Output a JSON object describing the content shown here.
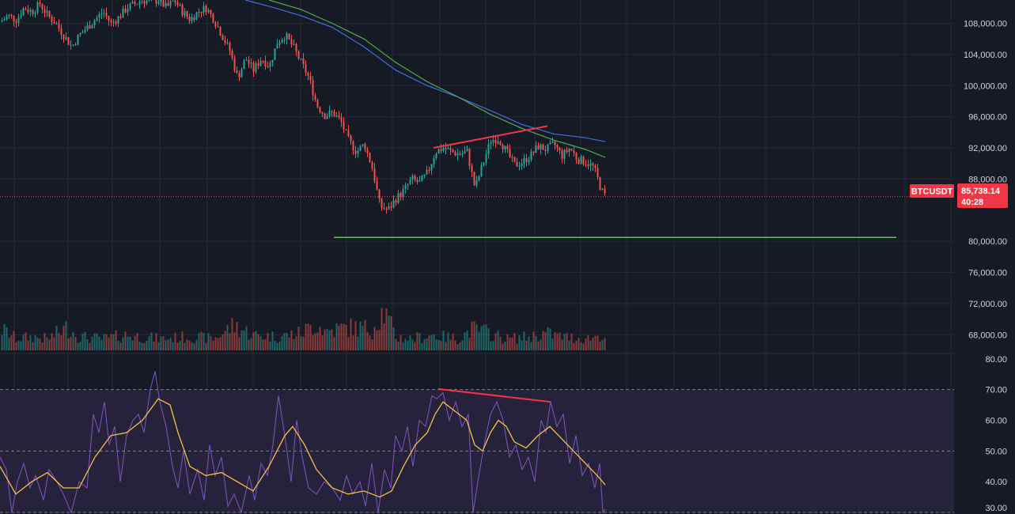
{
  "symbol_badge": "BTCUSDT",
  "last_price_label": "85,738.14",
  "countdown_label": "40:28",
  "colors": {
    "background": "#161a25",
    "grid": "#262a36",
    "up": "#26a69a",
    "down": "#ef5350",
    "ma_fast": "#3d6fe0",
    "ma_slow": "#4caf50",
    "rsi": "#7e57c2",
    "rsi_ma": "#f5c044",
    "rsi_band": "#2a2540",
    "trendline": "#f23645",
    "support": "#66bb6a",
    "price_badge": "#f23645"
  },
  "chart_data": [
    {
      "type": "candlestick",
      "price_axis_ticks": [
        "108,000.00",
        "104,000.00",
        "100,000.00",
        "96,000.00",
        "92,000.00",
        "88,000.00",
        "80,000.00",
        "76,000.00",
        "72,000.00",
        "68,000.00"
      ],
      "price_axis_values": [
        108000,
        104000,
        100000,
        96000,
        92000,
        88000,
        80000,
        76000,
        72000,
        68000
      ],
      "ylim": [
        66000,
        111000
      ],
      "last_price": 85738.14,
      "close_path": [
        [
          0,
          108200
        ],
        [
          10,
          109000
        ],
        [
          20,
          108500
        ],
        [
          30,
          110000
        ],
        [
          40,
          109500
        ],
        [
          50,
          110500
        ],
        [
          60,
          109000
        ],
        [
          70,
          108000
        ],
        [
          80,
          106500
        ],
        [
          90,
          105000
        ],
        [
          100,
          106500
        ],
        [
          110,
          107500
        ],
        [
          120,
          108500
        ],
        [
          130,
          109500
        ],
        [
          140,
          108000
        ],
        [
          150,
          108800
        ],
        [
          160,
          110000
        ],
        [
          170,
          110500
        ],
        [
          180,
          111000
        ],
        [
          190,
          110800
        ],
        [
          200,
          111000
        ],
        [
          210,
          110000
        ],
        [
          220,
          111000
        ],
        [
          230,
          109500
        ],
        [
          240,
          108500
        ],
        [
          250,
          109500
        ],
        [
          260,
          110000
        ],
        [
          270,
          108500
        ],
        [
          280,
          106500
        ],
        [
          290,
          104500
        ],
        [
          300,
          101000
        ],
        [
          310,
          103500
        ],
        [
          320,
          102000
        ],
        [
          330,
          103500
        ],
        [
          340,
          102500
        ],
        [
          350,
          105500
        ],
        [
          360,
          106500
        ],
        [
          370,
          105000
        ],
        [
          380,
          103000
        ],
        [
          390,
          101000
        ],
        [
          400,
          97500
        ],
        [
          410,
          96200
        ],
        [
          420,
          96500
        ],
        [
          430,
          95500
        ],
        [
          440,
          93000
        ],
        [
          450,
          91500
        ],
        [
          460,
          92500
        ],
        [
          470,
          89500
        ],
        [
          480,
          84500
        ],
        [
          490,
          84000
        ],
        [
          500,
          85500
        ],
        [
          510,
          86500
        ],
        [
          520,
          88000
        ],
        [
          530,
          87500
        ],
        [
          540,
          88800
        ],
        [
          550,
          91500
        ],
        [
          560,
          92000
        ],
        [
          570,
          91500
        ],
        [
          580,
          91200
        ],
        [
          590,
          91500
        ],
        [
          600,
          86800
        ],
        [
          610,
          90000
        ],
        [
          620,
          93000
        ],
        [
          630,
          93200
        ],
        [
          640,
          91500
        ],
        [
          650,
          89800
        ],
        [
          660,
          90200
        ],
        [
          670,
          91000
        ],
        [
          680,
          92200
        ],
        [
          690,
          91800
        ],
        [
          700,
          92500
        ],
        [
          710,
          91000
        ],
        [
          720,
          92000
        ],
        [
          730,
          90500
        ],
        [
          740,
          90200
        ],
        [
          750,
          89500
        ],
        [
          760,
          86500
        ],
        [
          765,
          85738
        ]
      ],
      "volume_path": [
        [
          0,
          0.55
        ],
        [
          10,
          0.45
        ],
        [
          20,
          0.3
        ],
        [
          40,
          0.35
        ],
        [
          60,
          0.3
        ],
        [
          85,
          0.6
        ],
        [
          100,
          0.35
        ],
        [
          130,
          0.3
        ],
        [
          160,
          0.4
        ],
        [
          200,
          0.3
        ],
        [
          240,
          0.35
        ],
        [
          270,
          0.3
        ],
        [
          295,
          0.65
        ],
        [
          320,
          0.4
        ],
        [
          350,
          0.35
        ],
        [
          380,
          0.45
        ],
        [
          400,
          0.7
        ],
        [
          410,
          0.5
        ],
        [
          440,
          0.6
        ],
        [
          470,
          0.55
        ],
        [
          480,
          0.95
        ],
        [
          485,
          1.0
        ],
        [
          500,
          0.35
        ],
        [
          520,
          0.3
        ],
        [
          545,
          0.4
        ],
        [
          560,
          0.35
        ],
        [
          580,
          0.3
        ],
        [
          595,
          0.55
        ],
        [
          610,
          0.5
        ],
        [
          640,
          0.3
        ],
        [
          670,
          0.35
        ],
        [
          690,
          0.45
        ],
        [
          710,
          0.35
        ],
        [
          740,
          0.3
        ],
        [
          760,
          0.4
        ],
        [
          765,
          0.3
        ]
      ],
      "ma_fast_path": [
        [
          310,
          111000
        ],
        [
          340,
          110200
        ],
        [
          380,
          109000
        ],
        [
          420,
          107500
        ],
        [
          460,
          105000
        ],
        [
          500,
          102000
        ],
        [
          540,
          100000
        ],
        [
          580,
          98500
        ],
        [
          620,
          96800
        ],
        [
          660,
          95000
        ],
        [
          700,
          93800
        ],
        [
          740,
          93300
        ],
        [
          765,
          92800
        ]
      ],
      "ma_slow_path": [
        [
          340,
          111000
        ],
        [
          380,
          109800
        ],
        [
          420,
          108000
        ],
        [
          460,
          106000
        ],
        [
          500,
          103000
        ],
        [
          540,
          100500
        ],
        [
          580,
          98500
        ],
        [
          620,
          96300
        ],
        [
          660,
          94500
        ],
        [
          700,
          93000
        ],
        [
          740,
          91800
        ],
        [
          765,
          90800
        ]
      ],
      "resistance_line": [
        [
          548,
          92000
        ],
        [
          692,
          94800
        ]
      ],
      "support_line": [
        [
          422,
          80500
        ],
        [
          1133,
          80500
        ]
      ]
    },
    {
      "type": "line",
      "rsi_axis_ticks": [
        "80.00",
        "70.00",
        "60.00",
        "50.00",
        "40.00",
        "30.00"
      ],
      "rsi_axis_values": [
        80,
        70,
        60,
        50,
        40,
        30
      ],
      "ylim": [
        29.5,
        81.5
      ],
      "overbought": 70,
      "midline": 50,
      "oversold": 30,
      "rsi_path": [
        [
          0,
          48
        ],
        [
          8,
          44
        ],
        [
          15,
          30
        ],
        [
          22,
          40
        ],
        [
          30,
          46
        ],
        [
          38,
          38
        ],
        [
          45,
          42
        ],
        [
          55,
          34
        ],
        [
          62,
          44
        ],
        [
          72,
          40
        ],
        [
          80,
          36
        ],
        [
          90,
          30
        ],
        [
          100,
          40
        ],
        [
          110,
          38
        ],
        [
          118,
          62
        ],
        [
          125,
          56
        ],
        [
          132,
          66
        ],
        [
          138,
          52
        ],
        [
          145,
          58
        ],
        [
          152,
          40
        ],
        [
          160,
          55
        ],
        [
          168,
          60
        ],
        [
          175,
          62
        ],
        [
          182,
          56
        ],
        [
          190,
          70
        ],
        [
          196,
          76
        ],
        [
          202,
          66
        ],
        [
          210,
          58
        ],
        [
          218,
          45
        ],
        [
          225,
          38
        ],
        [
          232,
          50
        ],
        [
          240,
          36
        ],
        [
          250,
          44
        ],
        [
          258,
          34
        ],
        [
          265,
          52
        ],
        [
          272,
          42
        ],
        [
          280,
          48
        ],
        [
          288,
          32
        ],
        [
          296,
          36
        ],
        [
          305,
          30
        ],
        [
          315,
          42
        ],
        [
          322,
          34
        ],
        [
          330,
          46
        ],
        [
          338,
          42
        ],
        [
          345,
          52
        ],
        [
          352,
          68
        ],
        [
          360,
          55
        ],
        [
          368,
          40
        ],
        [
          375,
          60
        ],
        [
          382,
          48
        ],
        [
          390,
          38
        ],
        [
          400,
          36
        ],
        [
          410,
          40
        ],
        [
          420,
          38
        ],
        [
          430,
          34
        ],
        [
          438,
          42
        ],
        [
          446,
          36
        ],
        [
          455,
          40
        ],
        [
          462,
          32
        ],
        [
          470,
          46
        ],
        [
          478,
          30
        ],
        [
          486,
          44
        ],
        [
          494,
          38
        ],
        [
          500,
          55
        ],
        [
          508,
          50
        ],
        [
          515,
          58
        ],
        [
          522,
          45
        ],
        [
          530,
          60
        ],
        [
          538,
          58
        ],
        [
          546,
          68
        ],
        [
          552,
          67
        ],
        [
          560,
          69
        ],
        [
          568,
          60
        ],
        [
          576,
          66
        ],
        [
          584,
          58
        ],
        [
          592,
          62
        ],
        [
          598,
          30
        ],
        [
          604,
          40
        ],
        [
          612,
          52
        ],
        [
          620,
          62
        ],
        [
          628,
          66
        ],
        [
          636,
          60
        ],
        [
          644,
          48
        ],
        [
          652,
          52
        ],
        [
          660,
          44
        ],
        [
          668,
          48
        ],
        [
          676,
          40
        ],
        [
          684,
          60
        ],
        [
          690,
          56
        ],
        [
          696,
          66
        ],
        [
          704,
          58
        ],
        [
          712,
          62
        ],
        [
          720,
          46
        ],
        [
          728,
          55
        ],
        [
          736,
          42
        ],
        [
          744,
          46
        ],
        [
          752,
          38
        ],
        [
          758,
          46
        ],
        [
          762,
          30
        ],
        [
          765,
          31
        ]
      ],
      "rsi_ma_path": [
        [
          0,
          45
        ],
        [
          20,
          36
        ],
        [
          40,
          40
        ],
        [
          60,
          43
        ],
        [
          80,
          38
        ],
        [
          100,
          38
        ],
        [
          120,
          48
        ],
        [
          140,
          55
        ],
        [
          160,
          56
        ],
        [
          180,
          60
        ],
        [
          200,
          67
        ],
        [
          215,
          65
        ],
        [
          225,
          56
        ],
        [
          240,
          45
        ],
        [
          260,
          42
        ],
        [
          280,
          43
        ],
        [
          300,
          40
        ],
        [
          320,
          37
        ],
        [
          340,
          45
        ],
        [
          360,
          55
        ],
        [
          370,
          58
        ],
        [
          385,
          52
        ],
        [
          400,
          44
        ],
        [
          420,
          38
        ],
        [
          440,
          36
        ],
        [
          460,
          37
        ],
        [
          480,
          35
        ],
        [
          495,
          37
        ],
        [
          510,
          45
        ],
        [
          525,
          52
        ],
        [
          540,
          56
        ],
        [
          550,
          62
        ],
        [
          560,
          66
        ],
        [
          575,
          63
        ],
        [
          590,
          60
        ],
        [
          600,
          52
        ],
        [
          610,
          50
        ],
        [
          620,
          56
        ],
        [
          630,
          60
        ],
        [
          640,
          58
        ],
        [
          650,
          53
        ],
        [
          665,
          51
        ],
        [
          680,
          55
        ],
        [
          695,
          58
        ],
        [
          710,
          54
        ],
        [
          725,
          50
        ],
        [
          740,
          46
        ],
        [
          755,
          42
        ],
        [
          765,
          39
        ]
      ],
      "rsi_divergence_line": [
        [
          554,
          70.2
        ],
        [
          696,
          66
        ]
      ]
    }
  ]
}
